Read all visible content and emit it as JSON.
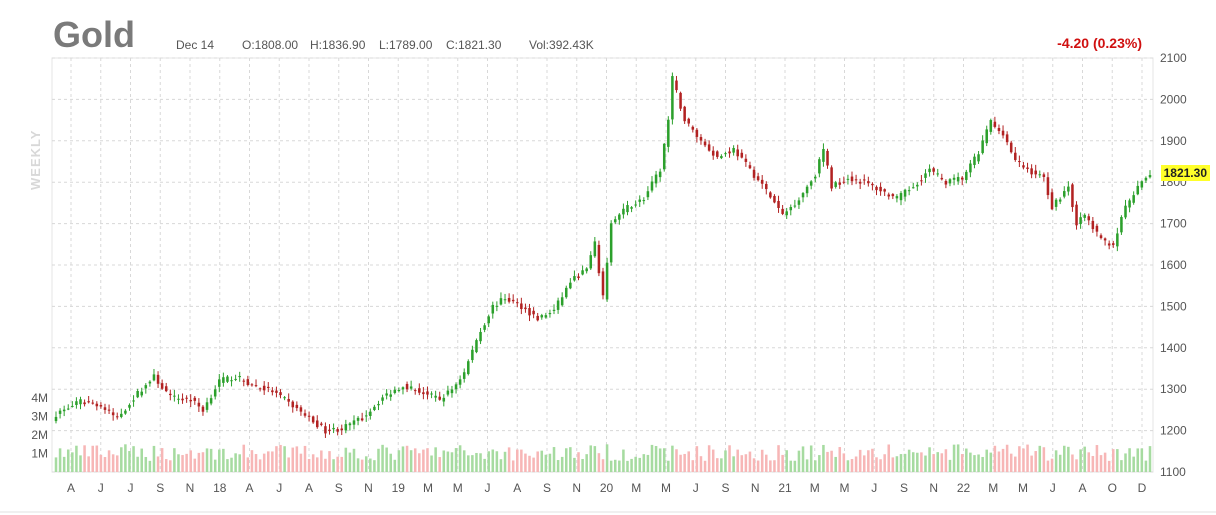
{
  "header": {
    "title": "Gold",
    "date": "Dec 14",
    "open": "O:1808.00",
    "high": "H:1836.90",
    "low": "L:1789.00",
    "close": "C:1821.30",
    "volume": "Vol:392.43K",
    "change": "-4.20 (0.23%)",
    "period": "WEEKLY",
    "last_price": "1821.30"
  },
  "colors": {
    "up": "#2ca02c",
    "down": "#b22222",
    "vol_up": "#a6dba0",
    "vol_down": "#f7b6b6",
    "grid": "#d8d8d8",
    "change": "#d01010",
    "price_tag": "#ffff2a"
  },
  "chart_data": {
    "type": "candlestick",
    "x_tick_labels": [
      "A",
      "J",
      "J",
      "S",
      "N",
      "18",
      "A",
      "J",
      "A",
      "S",
      "N",
      "19",
      "M",
      "M",
      "J",
      "A",
      "S",
      "N",
      "20",
      "M",
      "M",
      "J",
      "S",
      "N",
      "21",
      "M",
      "M",
      "J",
      "S",
      "N",
      "22",
      "M",
      "M",
      "J",
      "A",
      "O",
      "D"
    ],
    "y_ticks": [
      1100,
      1200,
      1300,
      1400,
      1500,
      1600,
      1700,
      1800,
      1900,
      2000,
      2100
    ],
    "ylim": [
      1100,
      2100
    ],
    "volume_tick_labels": [
      "1M",
      "2M",
      "3M",
      "4M"
    ],
    "volume_ylim": [
      0,
      4000000
    ],
    "weekly_close_anchors": [
      [
        0,
        1240
      ],
      [
        6,
        1270
      ],
      [
        10,
        1265
      ],
      [
        15,
        1230
      ],
      [
        20,
        1290
      ],
      [
        24,
        1330
      ],
      [
        28,
        1280
      ],
      [
        33,
        1275
      ],
      [
        36,
        1250
      ],
      [
        40,
        1320
      ],
      [
        44,
        1330
      ],
      [
        48,
        1310
      ],
      [
        53,
        1295
      ],
      [
        58,
        1260
      ],
      [
        62,
        1230
      ],
      [
        66,
        1200
      ],
      [
        70,
        1205
      ],
      [
        75,
        1230
      ],
      [
        80,
        1280
      ],
      [
        85,
        1310
      ],
      [
        89,
        1295
      ],
      [
        94,
        1275
      ],
      [
        97,
        1300
      ],
      [
        100,
        1340
      ],
      [
        103,
        1420
      ],
      [
        107,
        1500
      ],
      [
        110,
        1520
      ],
      [
        114,
        1500
      ],
      [
        118,
        1470
      ],
      [
        122,
        1490
      ],
      [
        126,
        1560
      ],
      [
        130,
        1590
      ],
      [
        132,
        1650
      ],
      [
        134,
        1520
      ],
      [
        136,
        1700
      ],
      [
        140,
        1740
      ],
      [
        144,
        1760
      ],
      [
        148,
        1830
      ],
      [
        150,
        1950
      ],
      [
        151,
        2050
      ],
      [
        154,
        1950
      ],
      [
        158,
        1900
      ],
      [
        162,
        1860
      ],
      [
        166,
        1880
      ],
      [
        170,
        1830
      ],
      [
        174,
        1780
      ],
      [
        178,
        1720
      ],
      [
        182,
        1760
      ],
      [
        186,
        1820
      ],
      [
        188,
        1880
      ],
      [
        190,
        1790
      ],
      [
        194,
        1810
      ],
      [
        198,
        1800
      ],
      [
        202,
        1780
      ],
      [
        206,
        1760
      ],
      [
        210,
        1790
      ],
      [
        214,
        1830
      ],
      [
        218,
        1800
      ],
      [
        222,
        1810
      ],
      [
        226,
        1870
      ],
      [
        229,
        1950
      ],
      [
        230,
        1930
      ],
      [
        232,
        1920
      ],
      [
        235,
        1850
      ],
      [
        238,
        1830
      ],
      [
        242,
        1810
      ],
      [
        244,
        1740
      ],
      [
        248,
        1790
      ],
      [
        250,
        1700
      ],
      [
        252,
        1720
      ],
      [
        256,
        1660
      ],
      [
        259,
        1650
      ],
      [
        262,
        1740
      ],
      [
        266,
        1800
      ],
      [
        268,
        1821.3
      ]
    ]
  }
}
